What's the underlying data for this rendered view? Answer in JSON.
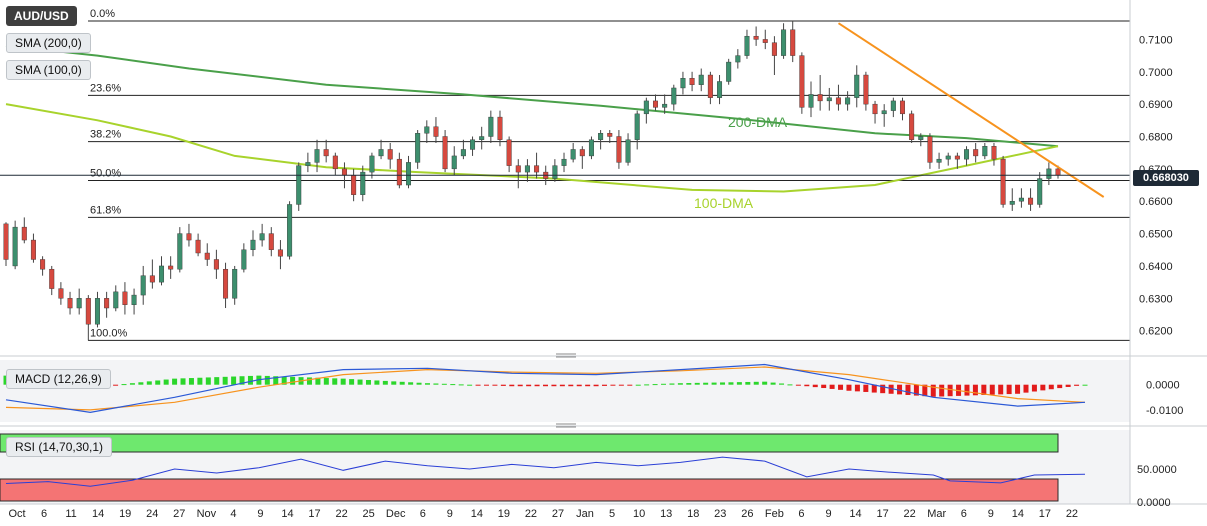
{
  "symbol": "AUD/USD",
  "price_tag": "0.668030",
  "indicators": {
    "sma200": "SMA (200,0)",
    "sma100": "SMA (100,0)",
    "macd": "MACD (12,26,9)",
    "rsi": "RSI (14,70,30,1)"
  },
  "colors": {
    "bull": "#3d8f6e",
    "bear": "#d6493f",
    "sma200": "#4aa04a",
    "sma100": "#a8d32c",
    "trendline": "#f7931e",
    "macd_line": "#2b59d6",
    "signal_line": "#f7931e",
    "hist_pos": "#2bd62b",
    "hist_neg": "#e21b1b",
    "rsi_line": "#2b3fd6",
    "rsi_upper_band": "#6ee86e",
    "rsi_lower_band": "#f47474"
  },
  "chart_data": [
    {
      "type": "candlestick",
      "title": "AUD/USD",
      "x_ticks": [
        "Oct",
        "6",
        "11",
        "14",
        "19",
        "24",
        "27",
        "Nov",
        "4",
        "9",
        "14",
        "17",
        "22",
        "25",
        "Dec",
        "6",
        "9",
        "14",
        "19",
        "22",
        "27",
        "Jan",
        "5",
        "10",
        "13",
        "18",
        "23",
        "26",
        "Feb",
        "6",
        "9",
        "14",
        "17",
        "22",
        "Mar",
        "6",
        "9",
        "14",
        "17",
        "22"
      ],
      "y_ticks": [
        "0.7100",
        "0.7000",
        "0.6900",
        "0.6800",
        "0.6700",
        "0.6600",
        "0.6500",
        "0.6400",
        "0.6300",
        "0.6200"
      ],
      "ylim": [
        0.6165,
        0.716
      ],
      "fib_levels": [
        {
          "label": "0.0%",
          "value": 0.7157
        },
        {
          "label": "23.6%",
          "value": 0.6927
        },
        {
          "label": "38.2%",
          "value": 0.6784
        },
        {
          "label": "50.0%",
          "value": 0.6664
        },
        {
          "label": "61.8%",
          "value": 0.655
        },
        {
          "label": "100.0%",
          "value": 0.617
        }
      ],
      "annotations": [
        "200-DMA",
        "100-DMA"
      ],
      "last_price": 0.66803,
      "candles": [
        [
          0.653,
          0.642,
          0.6535,
          0.64
        ],
        [
          0.64,
          0.652,
          0.654,
          0.639
        ],
        [
          0.652,
          0.648,
          0.655,
          0.647
        ],
        [
          0.648,
          0.642,
          0.65,
          0.641
        ],
        [
          0.642,
          0.639,
          0.643,
          0.637
        ],
        [
          0.639,
          0.633,
          0.64,
          0.631
        ],
        [
          0.633,
          0.63,
          0.635,
          0.628
        ],
        [
          0.63,
          0.627,
          0.632,
          0.625
        ],
        [
          0.627,
          0.63,
          0.633,
          0.625
        ],
        [
          0.63,
          0.622,
          0.631,
          0.617
        ],
        [
          0.622,
          0.63,
          0.632,
          0.621
        ],
        [
          0.63,
          0.627,
          0.632,
          0.624
        ],
        [
          0.627,
          0.632,
          0.634,
          0.626
        ],
        [
          0.632,
          0.628,
          0.635,
          0.625
        ],
        [
          0.628,
          0.631,
          0.633,
          0.625
        ],
        [
          0.631,
          0.637,
          0.64,
          0.628
        ],
        [
          0.637,
          0.635,
          0.642,
          0.633
        ],
        [
          0.635,
          0.64,
          0.643,
          0.634
        ],
        [
          0.64,
          0.639,
          0.643,
          0.636
        ],
        [
          0.639,
          0.65,
          0.652,
          0.638
        ],
        [
          0.65,
          0.648,
          0.653,
          0.646
        ],
        [
          0.648,
          0.644,
          0.65,
          0.643
        ],
        [
          0.644,
          0.642,
          0.647,
          0.64
        ],
        [
          0.642,
          0.639,
          0.645,
          0.636
        ],
        [
          0.639,
          0.63,
          0.641,
          0.627
        ],
        [
          0.63,
          0.639,
          0.64,
          0.628
        ],
        [
          0.639,
          0.645,
          0.647,
          0.638
        ],
        [
          0.645,
          0.648,
          0.651,
          0.643
        ],
        [
          0.648,
          0.65,
          0.653,
          0.646
        ],
        [
          0.65,
          0.645,
          0.652,
          0.643
        ],
        [
          0.645,
          0.643,
          0.648,
          0.639
        ],
        [
          0.643,
          0.659,
          0.66,
          0.642
        ],
        [
          0.659,
          0.671,
          0.672,
          0.657
        ],
        [
          0.671,
          0.672,
          0.675,
          0.669
        ],
        [
          0.672,
          0.676,
          0.679,
          0.669
        ],
        [
          0.676,
          0.674,
          0.679,
          0.672
        ],
        [
          0.674,
          0.67,
          0.675,
          0.668
        ],
        [
          0.67,
          0.668,
          0.672,
          0.664
        ],
        [
          0.668,
          0.662,
          0.67,
          0.66
        ],
        [
          0.662,
          0.669,
          0.671,
          0.66
        ],
        [
          0.669,
          0.674,
          0.675,
          0.667
        ],
        [
          0.674,
          0.676,
          0.679,
          0.673
        ],
        [
          0.676,
          0.673,
          0.678,
          0.67
        ],
        [
          0.673,
          0.665,
          0.675,
          0.664
        ],
        [
          0.665,
          0.672,
          0.674,
          0.664
        ],
        [
          0.672,
          0.681,
          0.682,
          0.67
        ],
        [
          0.681,
          0.683,
          0.685,
          0.678
        ],
        [
          0.683,
          0.68,
          0.686,
          0.678
        ],
        [
          0.68,
          0.67,
          0.682,
          0.669
        ],
        [
          0.67,
          0.674,
          0.677,
          0.668
        ],
        [
          0.674,
          0.676,
          0.679,
          0.673
        ],
        [
          0.676,
          0.679,
          0.68,
          0.674
        ],
        [
          0.679,
          0.68,
          0.683,
          0.676
        ],
        [
          0.68,
          0.686,
          0.688,
          0.678
        ],
        [
          0.686,
          0.679,
          0.688,
          0.677
        ],
        [
          0.679,
          0.671,
          0.68,
          0.669
        ],
        [
          0.671,
          0.669,
          0.673,
          0.664
        ],
        [
          0.669,
          0.671,
          0.673,
          0.666
        ],
        [
          0.671,
          0.669,
          0.675,
          0.667
        ],
        [
          0.669,
          0.667,
          0.671,
          0.665
        ],
        [
          0.667,
          0.671,
          0.673,
          0.666
        ],
        [
          0.671,
          0.673,
          0.675,
          0.669
        ],
        [
          0.673,
          0.676,
          0.678,
          0.672
        ],
        [
          0.676,
          0.674,
          0.677,
          0.67
        ],
        [
          0.674,
          0.679,
          0.68,
          0.673
        ],
        [
          0.679,
          0.681,
          0.682,
          0.676
        ],
        [
          0.681,
          0.68,
          0.682,
          0.678
        ],
        [
          0.68,
          0.672,
          0.682,
          0.67
        ],
        [
          0.672,
          0.679,
          0.681,
          0.671
        ],
        [
          0.679,
          0.687,
          0.688,
          0.676
        ],
        [
          0.687,
          0.691,
          0.692,
          0.684
        ],
        [
          0.691,
          0.689,
          0.693,
          0.688
        ],
        [
          0.689,
          0.69,
          0.693,
          0.687
        ],
        [
          0.69,
          0.695,
          0.696,
          0.688
        ],
        [
          0.695,
          0.698,
          0.7,
          0.693
        ],
        [
          0.698,
          0.696,
          0.7,
          0.694
        ],
        [
          0.696,
          0.699,
          0.701,
          0.694
        ],
        [
          0.699,
          0.692,
          0.7,
          0.69
        ],
        [
          0.692,
          0.697,
          0.699,
          0.69
        ],
        [
          0.697,
          0.703,
          0.704,
          0.696
        ],
        [
          0.703,
          0.705,
          0.707,
          0.701
        ],
        [
          0.705,
          0.711,
          0.713,
          0.704
        ],
        [
          0.711,
          0.71,
          0.714,
          0.708
        ],
        [
          0.71,
          0.709,
          0.713,
          0.707
        ],
        [
          0.709,
          0.705,
          0.711,
          0.699
        ],
        [
          0.705,
          0.713,
          0.715,
          0.704
        ],
        [
          0.713,
          0.705,
          0.7157,
          0.703
        ],
        [
          0.705,
          0.689,
          0.706,
          0.687
        ],
        [
          0.689,
          0.693,
          0.697,
          0.686
        ],
        [
          0.693,
          0.691,
          0.699,
          0.688
        ],
        [
          0.691,
          0.692,
          0.695,
          0.688
        ],
        [
          0.692,
          0.69,
          0.696,
          0.688
        ],
        [
          0.69,
          0.692,
          0.694,
          0.688
        ],
        [
          0.692,
          0.699,
          0.702,
          0.689
        ],
        [
          0.699,
          0.69,
          0.7,
          0.688
        ],
        [
          0.69,
          0.687,
          0.691,
          0.684
        ],
        [
          0.687,
          0.688,
          0.69,
          0.683
        ],
        [
          0.688,
          0.691,
          0.692,
          0.686
        ],
        [
          0.691,
          0.687,
          0.692,
          0.685
        ],
        [
          0.687,
          0.679,
          0.688,
          0.678
        ],
        [
          0.679,
          0.68,
          0.681,
          0.677
        ],
        [
          0.68,
          0.672,
          0.681,
          0.67
        ],
        [
          0.672,
          0.673,
          0.675,
          0.67
        ],
        [
          0.673,
          0.674,
          0.675,
          0.671
        ],
        [
          0.674,
          0.673,
          0.675,
          0.67
        ],
        [
          0.673,
          0.676,
          0.677,
          0.671
        ],
        [
          0.676,
          0.674,
          0.678,
          0.672
        ],
        [
          0.674,
          0.677,
          0.678,
          0.673
        ],
        [
          0.677,
          0.673,
          0.678,
          0.671
        ],
        [
          0.673,
          0.659,
          0.674,
          0.658
        ],
        [
          0.659,
          0.66,
          0.664,
          0.657
        ],
        [
          0.66,
          0.661,
          0.664,
          0.658
        ],
        [
          0.661,
          0.659,
          0.664,
          0.657
        ],
        [
          0.659,
          0.667,
          0.669,
          0.658
        ],
        [
          0.667,
          0.67,
          0.672,
          0.665
        ],
        [
          0.67,
          0.668,
          0.671,
          0.667
        ]
      ],
      "sma200": [
        [
          0,
          0.708
        ],
        [
          10,
          0.705
        ],
        [
          20,
          0.701
        ],
        [
          35,
          0.696
        ],
        [
          50,
          0.693
        ],
        [
          65,
          0.6895
        ],
        [
          80,
          0.6855
        ],
        [
          95,
          0.681
        ],
        [
          105,
          0.6795
        ],
        [
          115,
          0.677
        ]
      ],
      "sma100": [
        [
          0,
          0.69
        ],
        [
          10,
          0.685
        ],
        [
          18,
          0.68
        ],
        [
          25,
          0.674
        ],
        [
          35,
          0.6705
        ],
        [
          45,
          0.669
        ],
        [
          60,
          0.667
        ],
        [
          75,
          0.6635
        ],
        [
          85,
          0.663
        ],
        [
          95,
          0.665
        ],
        [
          105,
          0.671
        ],
        [
          115,
          0.677
        ]
      ],
      "trendline": [
        [
          91,
          0.715
        ],
        [
          120,
          0.6613
        ]
      ]
    },
    {
      "type": "bar",
      "title": "MACD (12,26,9)",
      "y_ticks": [
        "0.0000",
        "-0.0100"
      ],
      "ylim": [
        -0.014,
        0.009
      ],
      "macd_line": [
        [
          0,
          -0.006
        ],
        [
          10,
          -0.011
        ],
        [
          20,
          -0.005
        ],
        [
          30,
          0.002
        ],
        [
          40,
          0.006
        ],
        [
          50,
          0.0065
        ],
        [
          60,
          0.0045
        ],
        [
          70,
          0.004
        ],
        [
          80,
          0.006
        ],
        [
          90,
          0.008
        ],
        [
          100,
          0.002
        ],
        [
          110,
          -0.005
        ],
        [
          120,
          -0.0085
        ],
        [
          128,
          -0.007
        ]
      ],
      "signal_line": [
        [
          0,
          -0.009
        ],
        [
          10,
          -0.01
        ],
        [
          20,
          -0.007
        ],
        [
          30,
          -0.001
        ],
        [
          40,
          0.004
        ],
        [
          50,
          0.006
        ],
        [
          60,
          0.005
        ],
        [
          70,
          0.0045
        ],
        [
          80,
          0.0055
        ],
        [
          90,
          0.007
        ],
        [
          100,
          0.004
        ],
        [
          110,
          -0.001
        ],
        [
          120,
          -0.0055
        ],
        [
          128,
          -0.007
        ]
      ],
      "histogram_note": "positive green / negative red bars"
    },
    {
      "type": "line",
      "title": "RSI (14,70,30,1)",
      "y_ticks": [
        "50.0000",
        "0.0000"
      ],
      "ylim": [
        0,
        100
      ],
      "rsi": [
        [
          0,
          28
        ],
        [
          5,
          31
        ],
        [
          10,
          24
        ],
        [
          15,
          33
        ],
        [
          20,
          50
        ],
        [
          25,
          44
        ],
        [
          30,
          52
        ],
        [
          35,
          65
        ],
        [
          40,
          48
        ],
        [
          45,
          62
        ],
        [
          50,
          55
        ],
        [
          55,
          50
        ],
        [
          60,
          57
        ],
        [
          65,
          52
        ],
        [
          70,
          60
        ],
        [
          75,
          55
        ],
        [
          80,
          60
        ],
        [
          85,
          68
        ],
        [
          90,
          62
        ],
        [
          95,
          38
        ],
        [
          100,
          50
        ],
        [
          105,
          45
        ],
        [
          110,
          41
        ],
        [
          112,
          32
        ],
        [
          118,
          29
        ],
        [
          122,
          41
        ],
        [
          128,
          42
        ]
      ]
    }
  ]
}
